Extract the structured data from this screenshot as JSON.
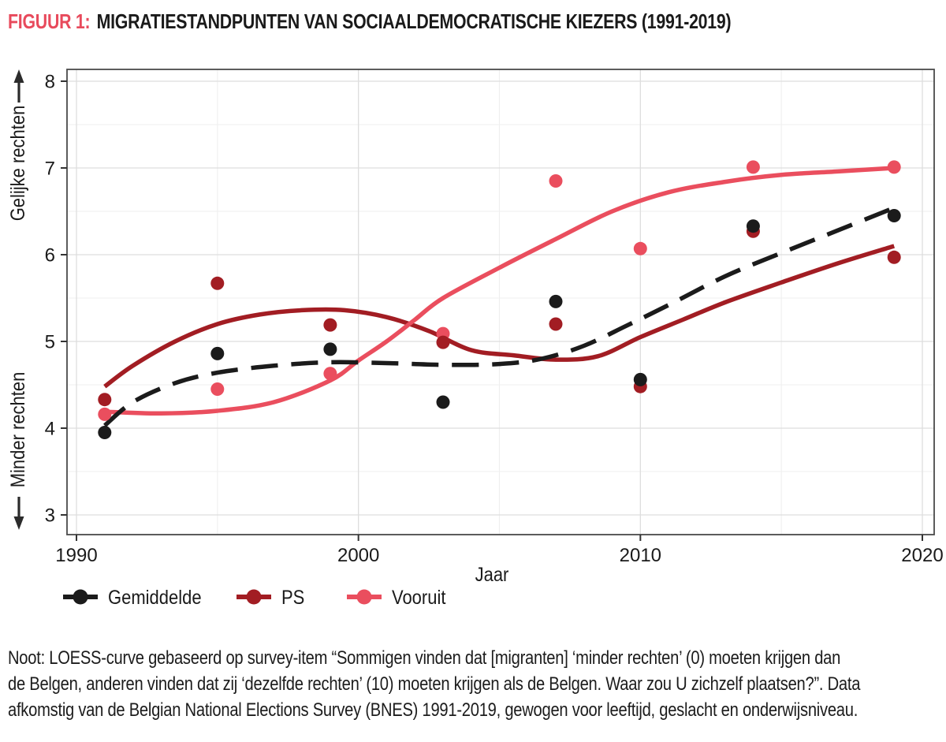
{
  "figure": {
    "label": "FIGUUR 1:",
    "label_color": "#e84a5c",
    "title": "MIGRATIESTANDPUNTEN VAN SOCIAALDEMOCRATISCHE KIEZERS (1991-2019)"
  },
  "note": {
    "lines": [
      "Noot: LOESS-curve gebaseerd op survey-item “Sommigen vinden dat [migranten] ‘minder rechten’ (0) moeten krijgen dan",
      "de Belgen, anderen vinden dat zij ‘dezelfde rechten’ (10) moeten krijgen als de Belgen. Waar zou U zichzelf plaatsen?”. Data",
      "afkomstig van de Belgian National Elections Survey (BNES) 1991-2019, gewogen voor leeftijd, geslacht en onderwijsniveau."
    ]
  },
  "chart_data": {
    "type": "scatter",
    "smoother": "LOESS",
    "title": "Migratiestandpunten van sociaaldemocratische kiezers (1991-2019)",
    "xlabel": "Jaar",
    "ylabel_top": "Gelijke rechten",
    "ylabel_bottom": "Minder rechten",
    "xlim": [
      1989.6,
      2020.4
    ],
    "ylim": [
      2.8,
      8.15
    ],
    "xticks": [
      1990,
      2000,
      2010,
      2020
    ],
    "xticks_minor": [
      1995,
      2005,
      2015
    ],
    "yticks": [
      3,
      4,
      5,
      6,
      7,
      8
    ],
    "yticks_minor": [
      3.5,
      4.5,
      5.5,
      6.5,
      7.5
    ],
    "grid": true,
    "legend_position": "bottom-left",
    "survey_years": [
      1991,
      1995,
      1999,
      2003,
      2007,
      2010,
      2014,
      2019
    ],
    "series": [
      {
        "name": "Gemiddelde",
        "color": "#1b1b1b",
        "line_style": "dashed",
        "points": [
          [
            1991,
            3.95
          ],
          [
            1995,
            4.86
          ],
          [
            1999,
            4.91
          ],
          [
            2003,
            4.3
          ],
          [
            2007,
            5.46
          ],
          [
            2010,
            4.56
          ],
          [
            2014,
            6.33
          ],
          [
            2019,
            6.45
          ]
        ],
        "loess": [
          [
            1991,
            4.03
          ],
          [
            1992,
            4.3
          ],
          [
            1993.5,
            4.52
          ],
          [
            1995,
            4.64
          ],
          [
            1997,
            4.72
          ],
          [
            1999,
            4.76
          ],
          [
            2001,
            4.75
          ],
          [
            2003,
            4.73
          ],
          [
            2005,
            4.74
          ],
          [
            2006.5,
            4.8
          ],
          [
            2008,
            4.95
          ],
          [
            2009.5,
            5.18
          ],
          [
            2011,
            5.42
          ],
          [
            2013,
            5.75
          ],
          [
            2015,
            6.02
          ],
          [
            2017,
            6.28
          ],
          [
            2019,
            6.54
          ]
        ]
      },
      {
        "name": "PS",
        "color": "#a21d23",
        "line_style": "solid",
        "points": [
          [
            1991,
            4.33
          ],
          [
            1995,
            5.67
          ],
          [
            1999,
            5.19
          ],
          [
            2003,
            4.99
          ],
          [
            2007,
            5.2
          ],
          [
            2010,
            4.48
          ],
          [
            2014,
            6.27
          ],
          [
            2019,
            5.97
          ]
        ],
        "loess": [
          [
            1991,
            4.48
          ],
          [
            1992,
            4.72
          ],
          [
            1993.5,
            5.0
          ],
          [
            1995,
            5.2
          ],
          [
            1996.5,
            5.31
          ],
          [
            1998,
            5.36
          ],
          [
            1999.5,
            5.36
          ],
          [
            2001,
            5.28
          ],
          [
            2002.5,
            5.12
          ],
          [
            2004,
            4.9
          ],
          [
            2005.5,
            4.84
          ],
          [
            2007,
            4.79
          ],
          [
            2008.5,
            4.83
          ],
          [
            2010,
            5.05
          ],
          [
            2011.5,
            5.25
          ],
          [
            2013,
            5.45
          ],
          [
            2015,
            5.68
          ],
          [
            2017,
            5.9
          ],
          [
            2019,
            6.1
          ]
        ]
      },
      {
        "name": "Vooruit",
        "color": "#ea4e5e",
        "line_style": "solid",
        "points": [
          [
            1991,
            4.16
          ],
          [
            1995,
            4.45
          ],
          [
            1999,
            4.63
          ],
          [
            2003,
            5.09
          ],
          [
            2007,
            6.85
          ],
          [
            2010,
            6.07
          ],
          [
            2014,
            7.01
          ],
          [
            2019,
            7.01
          ]
        ],
        "loess": [
          [
            1991,
            4.19
          ],
          [
            1993,
            4.17
          ],
          [
            1995,
            4.2
          ],
          [
            1997,
            4.3
          ],
          [
            1999,
            4.55
          ],
          [
            2000,
            4.78
          ],
          [
            2001,
            5.0
          ],
          [
            2002,
            5.25
          ],
          [
            2003,
            5.5
          ],
          [
            2005,
            5.85
          ],
          [
            2007,
            6.18
          ],
          [
            2009,
            6.5
          ],
          [
            2011,
            6.72
          ],
          [
            2013,
            6.84
          ],
          [
            2015,
            6.92
          ],
          [
            2017,
            6.96
          ],
          [
            2019,
            7.0
          ]
        ]
      }
    ]
  }
}
